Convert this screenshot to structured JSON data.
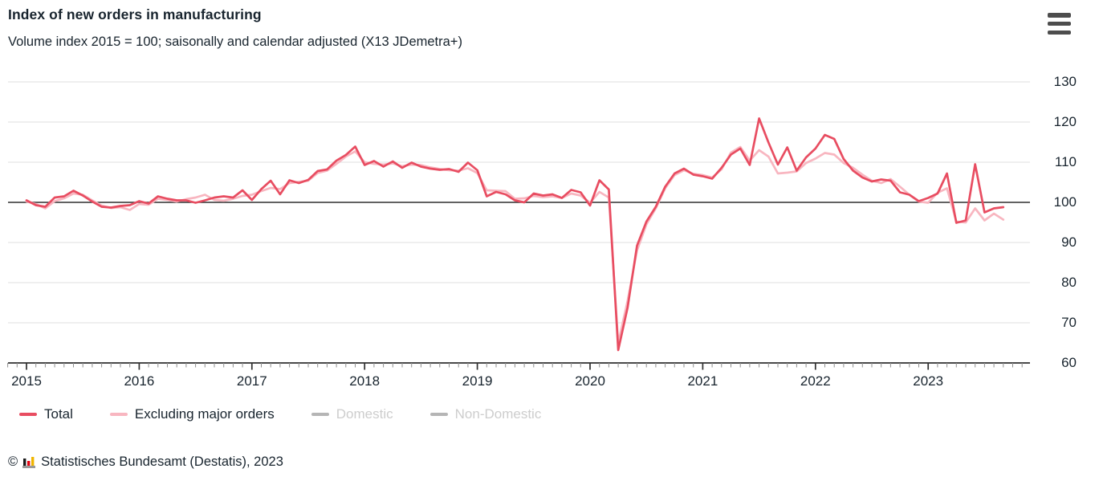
{
  "header": {
    "title": "Index of new orders in manufacturing",
    "subtitle": "Volume index 2015 = 100; saisonally and calendar adjusted (X13 JDemetra+)"
  },
  "menu": {
    "icon": "hamburger-menu-icon",
    "label": "Chart menu"
  },
  "chart_data": {
    "type": "line",
    "title": "Index of new orders in manufacturing",
    "subtitle": "Volume index 2015 = 100; saisonally and calendar adjusted (X13 JDemetra+)",
    "x_unit": "month",
    "x_start": "2015-01",
    "x_end": "2023-09",
    "x_tick_labels": [
      "2015",
      "2016",
      "2017",
      "2018",
      "2019",
      "2020",
      "2021",
      "2022",
      "2023"
    ],
    "x_minor_ticks": "monthly",
    "y_ticks": [
      130,
      120,
      110,
      100,
      90,
      80,
      70,
      60
    ],
    "ylim": [
      60,
      130
    ],
    "baseline": 100,
    "grid": "horizontal",
    "legend_position": "bottom",
    "series": [
      {
        "name": "Total",
        "color": "#e84d61",
        "active": true,
        "values": [
          100.5,
          99.3,
          98.9,
          101.2,
          101.5,
          102.9,
          101.7,
          100.2,
          98.9,
          98.7,
          99.1,
          99.3,
          100.3,
          99.7,
          101.5,
          100.9,
          100.5,
          100.5,
          99.9,
          100.5,
          101.2,
          101.5,
          101.2,
          103.0,
          100.6,
          103.3,
          105.4,
          102.0,
          105.5,
          104.8,
          105.6,
          107.8,
          108.2,
          110.4,
          111.8,
          113.9,
          109.3,
          110.3,
          108.9,
          110.2,
          108.6,
          109.9,
          108.9,
          108.4,
          108.1,
          108.3,
          107.6,
          109.9,
          108.0,
          101.5,
          102.6,
          102.0,
          100.5,
          100.0,
          102.2,
          101.7,
          102.0,
          101.1,
          103.1,
          102.5,
          99.2,
          105.5,
          103.2,
          63.2,
          73.8,
          89.2,
          95.2,
          98.9,
          103.9,
          107.2,
          108.4,
          106.9,
          106.5,
          105.9,
          108.6,
          111.9,
          113.4,
          109.3,
          120.9,
          114.9,
          109.4,
          113.7,
          107.9,
          111.2,
          113.4,
          116.8,
          115.8,
          110.8,
          107.9,
          106.2,
          105.2,
          105.7,
          105.4,
          102.5,
          101.9,
          100.3,
          101.1,
          102.2,
          107.2,
          94.9,
          95.5,
          109.5,
          97.5,
          98.5,
          98.8
        ]
      },
      {
        "name": "Excluding major orders",
        "color": "#f8b6c0",
        "active": true,
        "values": [
          100.2,
          99.6,
          98.5,
          100.3,
          101.0,
          102.2,
          101.9,
          100.5,
          99.2,
          98.6,
          98.8,
          98.1,
          99.6,
          99.4,
          100.9,
          100.6,
          100.2,
          100.8,
          101.2,
          101.9,
          100.6,
          100.4,
          100.9,
          101.6,
          101.9,
          102.8,
          103.6,
          103.3,
          104.8,
          105.1,
          105.4,
          107.3,
          107.9,
          109.6,
          111.4,
          112.7,
          110.0,
          109.6,
          109.4,
          109.7,
          109.0,
          109.4,
          109.3,
          108.7,
          108.3,
          108.0,
          107.9,
          108.5,
          107.3,
          103.0,
          102.9,
          102.8,
          100.9,
          101.0,
          101.6,
          101.3,
          101.5,
          101.1,
          102.2,
          101.7,
          99.9,
          102.6,
          101.2,
          65.0,
          75.5,
          88.0,
          94.5,
          98.5,
          103.5,
          106.8,
          108.0,
          107.1,
          106.8,
          106.2,
          108.2,
          112.4,
          113.8,
          110.4,
          113.0,
          111.4,
          107.2,
          107.4,
          107.7,
          109.8,
          110.9,
          112.3,
          111.9,
          109.8,
          108.6,
          106.9,
          105.4,
          104.8,
          105.8,
          103.9,
          101.9,
          100.2,
          99.9,
          102.4,
          103.5,
          95.2,
          95.0,
          98.5,
          95.5,
          97.2,
          95.7
        ]
      },
      {
        "name": "Domestic",
        "color": "#b5b5b5",
        "active": false,
        "values": []
      },
      {
        "name": "Non-Domestic",
        "color": "#b5b5b5",
        "active": false,
        "values": []
      }
    ]
  },
  "footer": {
    "copyright": "©",
    "logo_icon": "destatis-bar-chart-logo",
    "source": "Statistisches Bundesamt (Destatis), 2023"
  },
  "colors": {
    "total_line": "#e84d61",
    "excluding_line": "#f8b6c0",
    "disabled_legend": "#cdcdcd",
    "grid_line": "#eaeaea",
    "axis_line": "#2f2f2f",
    "text": "#18242e"
  }
}
